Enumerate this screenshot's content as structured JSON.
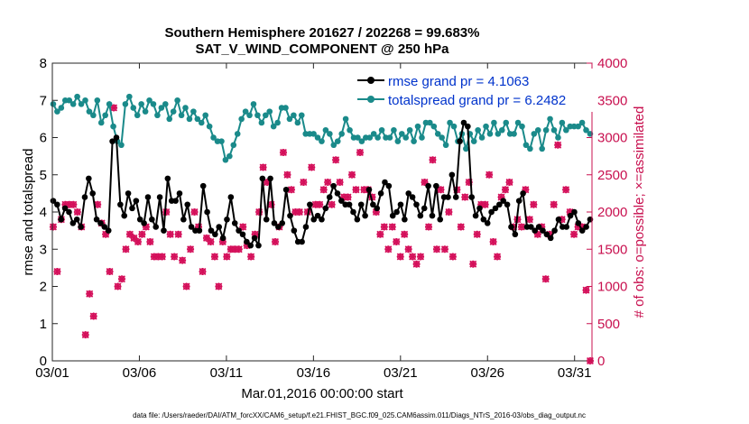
{
  "chart_data": {
    "type": "line",
    "title_line1": "Southern Hemisphere 201627 / 202268 = 99.683%",
    "title_line2": "SAT_V_WIND_COMPONENT @ 250 hPa",
    "xlabel": "Mar.01,2016 00:00:00 start",
    "ylabel_left": "rmse and totalspread",
    "ylabel_right": "# of obs: o=possible; ×=assimilated",
    "footnote": "data file: /Users/raeder/DAI/ATM_forcXX/CAM6_setup/f.e21.FHIST_BGC.f09_025.CAM6assim.011/Diags_NTrS_2016-03/obs_diag_output.nc",
    "xlim": [
      1,
      32
    ],
    "ylim_left": [
      0,
      8
    ],
    "ylim_right": [
      0,
      4000
    ],
    "x_tick_labels": [
      "03/01",
      "03/06",
      "03/11",
      "03/16",
      "03/21",
      "03/26",
      "03/31"
    ],
    "y_left_ticks": [
      "0",
      "1",
      "2",
      "3",
      "4",
      "5",
      "6",
      "7",
      "8"
    ],
    "y_right_ticks": [
      "0",
      "500",
      "1000",
      "1500",
      "2000",
      "2500",
      "3000",
      "3500",
      "4000"
    ],
    "colors": {
      "rmse": "#000000",
      "spread": "#1a8a8a",
      "obs": "#d40f5a",
      "axis_right": "#c8104f",
      "legend_text": "#0033cc"
    },
    "series": [
      {
        "name": "rmse grand pr = 4.1063",
        "values": [
          4.3,
          4.2,
          3.8,
          4.1,
          4.0,
          3.7,
          3.8,
          3.6,
          4.4,
          4.9,
          4.5,
          3.8,
          3.7,
          3.6,
          3.5,
          5.9,
          6.0,
          4.2,
          3.9,
          4.5,
          4.1,
          4.3,
          3.8,
          3.7,
          4.4,
          3.8,
          3.6,
          4.4,
          3.5,
          4.9,
          4.3,
          4.3,
          4.5,
          3.8,
          4.2,
          3.6,
          3.5,
          3.5,
          4.7,
          4.0,
          3.5,
          3.4,
          3.6,
          3.3,
          3.8,
          4.4,
          3.7,
          3.5,
          3.4,
          3.2,
          3.1,
          3.3,
          3.1,
          4.9,
          3.8,
          4.9,
          3.7,
          3.6,
          3.7,
          4.6,
          3.9,
          3.5,
          3.2,
          3.2,
          3.6,
          4.2,
          3.8,
          3.9,
          3.8,
          4.1,
          4.4,
          4.7,
          4.5,
          4.3,
          4.2,
          4.2,
          4.0,
          3.8,
          4.2,
          3.9,
          4.6,
          4.2,
          4.1,
          4.5,
          4.8,
          4.7,
          3.9,
          4.0,
          4.2,
          3.8,
          4.5,
          4.4,
          4.2,
          3.9,
          4.1,
          4.7,
          3.9,
          4.7,
          3.8,
          4.4,
          4.4,
          5.0,
          4.4,
          5.9,
          6.4,
          6.3,
          4.4,
          3.9,
          4.1,
          3.8,
          3.7,
          4.0,
          4.1,
          4.2,
          4.3,
          4.2,
          3.6,
          3.4,
          4.3,
          4.5,
          3.6,
          3.6,
          3.5,
          3.6,
          3.5,
          3.4,
          3.3,
          3.5,
          3.8,
          3.6,
          3.6,
          3.9,
          4.0,
          3.7,
          3.5,
          3.6,
          3.8
        ],
        "marker": "circle"
      },
      {
        "name": "totalspread grand pr = 6.2482",
        "values": [
          6.9,
          6.7,
          6.8,
          7.0,
          7.0,
          6.9,
          7.1,
          6.9,
          7.0,
          6.7,
          6.6,
          7.0,
          6.4,
          6.6,
          6.9,
          6.3,
          5.9,
          5.8,
          6.9,
          7.1,
          6.8,
          6.6,
          6.9,
          6.7,
          7.0,
          6.9,
          6.6,
          6.8,
          6.9,
          6.5,
          6.7,
          7.0,
          6.6,
          6.8,
          6.5,
          6.7,
          6.5,
          6.4,
          6.6,
          6.3,
          6.0,
          5.9,
          5.9,
          5.4,
          5.5,
          5.8,
          6.1,
          6.5,
          6.7,
          6.6,
          6.9,
          6.6,
          6.4,
          6.6,
          6.7,
          6.3,
          6.4,
          6.8,
          6.8,
          6.5,
          6.6,
          6.4,
          6.6,
          6.1,
          6.1,
          6.1,
          6.0,
          5.9,
          6.2,
          6.1,
          5.8,
          5.9,
          6.1,
          6.5,
          6.2,
          6.0,
          6.0,
          5.9,
          6.0,
          6.0,
          6.1,
          6.0,
          6.2,
          6.0,
          6.0,
          6.2,
          5.9,
          6.1,
          6.0,
          6.2,
          5.9,
          6.3,
          6.0,
          6.4,
          6.4,
          6.3,
          6.1,
          6.0,
          5.8,
          6.4,
          6.3,
          5.9,
          6.1,
          5.7,
          6.1,
          5.9,
          6.2,
          6.0,
          6.3,
          6.1,
          6.4,
          6.1,
          6.2,
          6.4,
          6.1,
          6.1,
          6.4,
          6.3,
          5.8,
          5.7,
          6.1,
          6.2,
          5.7,
          6.2,
          6.5,
          6.2,
          6.0,
          6.4,
          6.2,
          6.3,
          6.3,
          6.3,
          6.4,
          6.2,
          6.1
        ],
        "marker": "circle"
      }
    ],
    "obs_possible_and_assimilated": [
      1800,
      1200,
      1900,
      2100,
      2100,
      2100,
      2000,
      1800,
      350,
      900,
      600,
      2100,
      1850,
      1700,
      1200,
      3400,
      1000,
      1100,
      1500,
      1700,
      1650,
      1600,
      1700,
      1800,
      1600,
      1400,
      1400,
      1400,
      2000,
      1700,
      1400,
      1700,
      1350,
      1000,
      1500,
      2000,
      1800,
      1200,
      1650,
      1600,
      1400,
      1000,
      1600,
      1400,
      1500,
      1500,
      1500,
      1800,
      1550,
      1400,
      1700,
      2000,
      2600,
      2400,
      2100,
      1600,
      1800,
      2800,
      2500,
      2300,
      2000,
      2000,
      2400,
      2000,
      2600,
      2100,
      2100,
      2300,
      2400,
      2100,
      2700,
      2400,
      2200,
      2200,
      2500,
      2300,
      2800,
      2300,
      2300,
      2200,
      2000,
      1700,
      1800,
      1500,
      1800,
      1600,
      1400,
      1700,
      1500,
      1400,
      1300,
      1400,
      2400,
      1800,
      2700,
      1500,
      2300,
      1500,
      2000,
      1400,
      2300,
      1800,
      2200,
      2400,
      1300,
      1700,
      2100,
      2100,
      2500,
      1600,
      1400,
      2200,
      2300,
      2400,
      1800,
      1900,
      1800,
      2300,
      1900,
      2100,
      1700,
      1800,
      1100,
      1700,
      2100,
      2900,
      1900,
      2300,
      2000,
      1700,
      1800,
      1800,
      950,
      0
    ],
    "legend_position": "top-right",
    "grid": false
  }
}
